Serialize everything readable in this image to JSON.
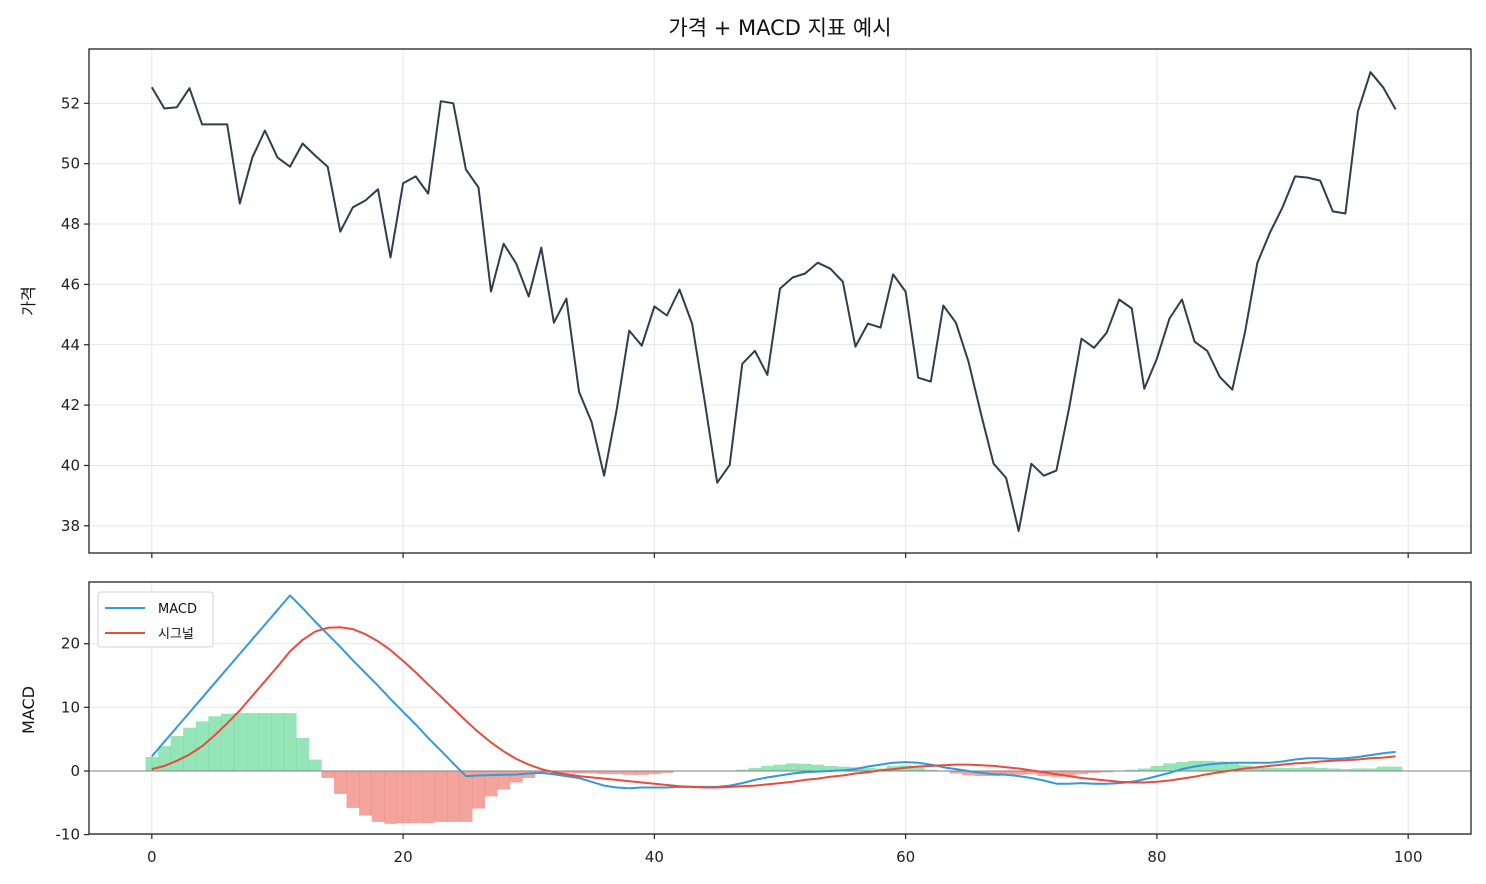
{
  "figure": {
    "title": "가격 + MACD 지표 예시",
    "background": "#ffffff"
  },
  "chart_data": [
    {
      "type": "line",
      "panel": "top",
      "title": "가격 + MACD 지표 예시",
      "xlabel": "",
      "ylabel": "가격",
      "xlim": [
        -5,
        105
      ],
      "ylim": [
        37.1,
        53.8
      ],
      "xticks": [
        0,
        20,
        40,
        60,
        80,
        100
      ],
      "xtick_labels_visible": false,
      "yticks": [
        38,
        40,
        42,
        44,
        46,
        48,
        50,
        52
      ],
      "grid": true,
      "series": [
        {
          "name": "가격",
          "color": "#2c3e50",
          "x_start": 0,
          "values": [
            52.53,
            51.83,
            51.87,
            52.5,
            51.3,
            51.3,
            51.3,
            48.68,
            50.2,
            51.1,
            50.2,
            49.9,
            50.67,
            50.27,
            49.9,
            47.75,
            48.55,
            48.78,
            49.15,
            46.89,
            49.35,
            49.58,
            49.01,
            52.07,
            52.0,
            49.81,
            49.21,
            45.76,
            47.35,
            46.69,
            45.6,
            47.22,
            44.73,
            45.53,
            42.44,
            41.45,
            39.66,
            41.85,
            44.47,
            43.97,
            45.27,
            44.97,
            45.83,
            44.7,
            42.15,
            39.43,
            40.02,
            43.37,
            43.8,
            43.0,
            45.86,
            46.23,
            46.36,
            46.72,
            46.52,
            46.09,
            43.94,
            44.7,
            44.57,
            46.33,
            45.76,
            42.91,
            42.78,
            45.3,
            44.73,
            43.44,
            41.71,
            40.06,
            39.59,
            37.83,
            40.06,
            39.66,
            39.83,
            41.88,
            44.2,
            43.9,
            44.4,
            45.5,
            45.2,
            42.54,
            43.54,
            44.87,
            45.5,
            44.1,
            43.8,
            42.94,
            42.51,
            44.4,
            46.72,
            47.72,
            48.55,
            49.58,
            49.54,
            49.44,
            48.42,
            48.35,
            51.73,
            53.03,
            52.53,
            51.8
          ]
        }
      ]
    },
    {
      "type": "line",
      "panel": "bottom",
      "title": "",
      "xlabel": "",
      "ylabel": "MACD",
      "xlim": [
        -5,
        105
      ],
      "ylim": [
        -9.9,
        29.7
      ],
      "xticks": [
        0,
        20,
        40,
        60,
        80,
        100
      ],
      "yticks": [
        -10,
        0,
        10,
        20
      ],
      "grid": true,
      "zero_line": true,
      "legend": {
        "position": "upper left",
        "entries": [
          "MACD",
          "시그널"
        ]
      },
      "series": [
        {
          "name": "MACD",
          "color": "#3498db",
          "x_start": 0,
          "values": [
            2.3,
            4.6,
            6.9,
            9.2,
            11.5,
            13.8,
            16.1,
            18.4,
            20.7,
            23.0,
            25.3,
            27.6,
            25.6,
            23.5,
            21.5,
            19.5,
            17.4,
            15.4,
            13.4,
            11.3,
            9.3,
            7.3,
            5.2,
            3.2,
            1.2,
            -0.8,
            -0.7,
            -0.65,
            -0.6,
            -0.55,
            -0.4,
            -0.3,
            -0.5,
            -0.8,
            -1.1,
            -1.7,
            -2.3,
            -2.6,
            -2.7,
            -2.6,
            -2.6,
            -2.6,
            -2.5,
            -2.5,
            -2.5,
            -2.5,
            -2.3,
            -1.9,
            -1.4,
            -1.0,
            -0.7,
            -0.4,
            -0.2,
            -0.1,
            0.0,
            0.1,
            0.3,
            0.7,
            1.0,
            1.3,
            1.4,
            1.3,
            1.0,
            0.6,
            0.3,
            0.0,
            -0.3,
            -0.5,
            -0.6,
            -0.8,
            -1.1,
            -1.5,
            -2.0,
            -2.0,
            -1.9,
            -2.0,
            -2.0,
            -1.9,
            -1.7,
            -1.3,
            -0.8,
            -0.3,
            0.3,
            0.7,
            1.0,
            1.2,
            1.3,
            1.3,
            1.3,
            1.3,
            1.5,
            1.8,
            2.0,
            2.0,
            1.9,
            2.0,
            2.2,
            2.5,
            2.8,
            3.0
          ]
        },
        {
          "name": "시그널",
          "color": "#e74c3c",
          "x_start": 0,
          "values": [
            0.3,
            0.8,
            1.6,
            2.6,
            3.9,
            5.6,
            7.5,
            9.5,
            11.8,
            14.1,
            16.4,
            18.8,
            20.6,
            21.9,
            22.5,
            22.6,
            22.3,
            21.5,
            20.4,
            19.0,
            17.3,
            15.5,
            13.6,
            11.7,
            9.8,
            7.9,
            6.1,
            4.5,
            3.1,
            1.9,
            1.0,
            0.3,
            -0.2,
            -0.5,
            -0.8,
            -1.0,
            -1.2,
            -1.4,
            -1.6,
            -1.8,
            -2.0,
            -2.2,
            -2.4,
            -2.5,
            -2.6,
            -2.6,
            -2.5,
            -2.4,
            -2.3,
            -2.1,
            -1.9,
            -1.7,
            -1.4,
            -1.2,
            -0.9,
            -0.7,
            -0.4,
            -0.2,
            0.1,
            0.3,
            0.5,
            0.7,
            0.8,
            0.9,
            1.0,
            1.0,
            0.9,
            0.8,
            0.6,
            0.4,
            0.1,
            -0.2,
            -0.5,
            -0.8,
            -1.1,
            -1.3,
            -1.5,
            -1.7,
            -1.8,
            -1.8,
            -1.7,
            -1.5,
            -1.2,
            -0.9,
            -0.5,
            -0.2,
            0.1,
            0.4,
            0.6,
            0.8,
            1.0,
            1.2,
            1.3,
            1.5,
            1.6,
            1.7,
            1.8,
            2.0,
            2.1,
            2.3
          ]
        },
        {
          "name": "히스토그램",
          "type": "bar",
          "positive_color": "#2ecc71",
          "negative_color": "#e74c3c",
          "alpha": 0.5,
          "x_start": 0,
          "values": [
            2.2,
            3.9,
            5.5,
            6.8,
            7.8,
            8.6,
            9.0,
            9.1,
            9.1,
            9.1,
            9.1,
            9.1,
            5.2,
            1.8,
            -1.1,
            -3.6,
            -5.8,
            -7.0,
            -8.0,
            -8.3,
            -8.2,
            -8.2,
            -8.2,
            -8.0,
            -8.0,
            -8.0,
            -5.9,
            -4.0,
            -2.9,
            -1.8,
            -1.1,
            -0.3,
            -0.2,
            -0.3,
            -0.4,
            -0.4,
            -0.5,
            -0.5,
            -0.6,
            -0.6,
            -0.5,
            -0.3,
            0.0,
            0.0,
            0.0,
            0.0,
            0.0,
            0.2,
            0.5,
            0.8,
            1.0,
            1.2,
            1.1,
            1.0,
            0.8,
            0.7,
            0.6,
            0.5,
            0.4,
            0.8,
            0.9,
            0.6,
            0.2,
            -0.1,
            -0.4,
            -0.7,
            -0.8,
            -0.8,
            -0.7,
            -0.6,
            -0.5,
            -0.8,
            -0.9,
            -0.7,
            -0.5,
            -0.3,
            -0.2,
            0.0,
            0.2,
            0.4,
            0.8,
            1.2,
            1.4,
            1.6,
            1.6,
            1.5,
            1.2,
            0.9,
            0.7,
            0.5,
            0.5,
            0.5,
            0.6,
            0.5,
            0.4,
            0.3,
            0.4,
            0.4,
            0.7,
            0.7
          ]
        }
      ]
    }
  ]
}
